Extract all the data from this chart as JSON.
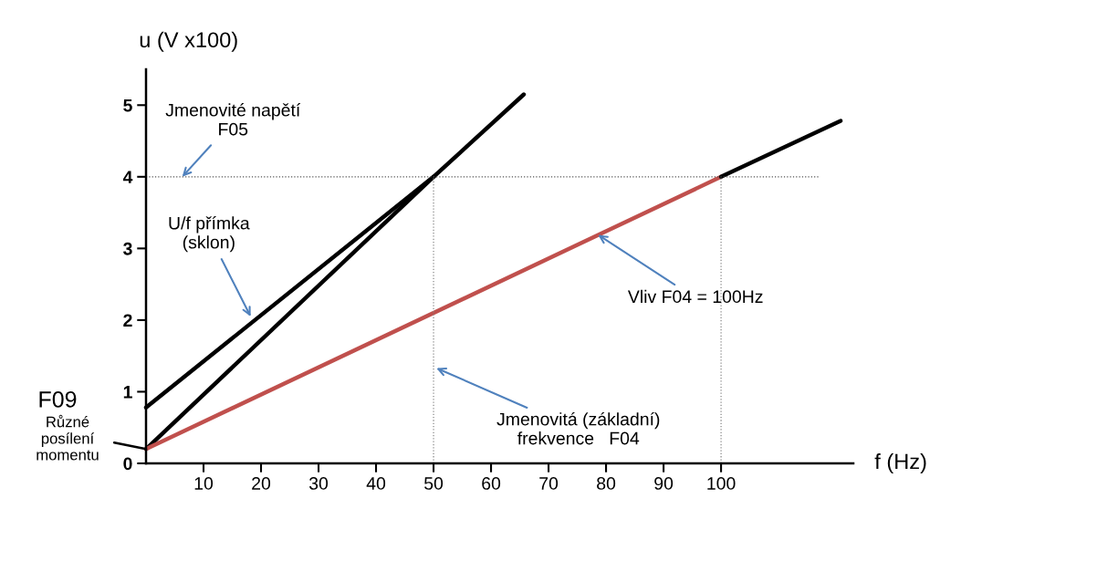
{
  "chart_data": {
    "type": "line",
    "xlabel": "f (Hz)",
    "ylabel": "u (V x100)",
    "xlim": [
      0,
      123
    ],
    "ylim": [
      0,
      5.5
    ],
    "xticks": [
      10,
      20,
      30,
      40,
      50,
      60,
      70,
      80,
      90,
      100
    ],
    "yticks": [
      0,
      1,
      2,
      3,
      4,
      5
    ],
    "grid": false,
    "series": [
      {
        "color": "#000000",
        "x": [
          0,
          50
        ],
        "values": [
          0.78,
          4.0
        ],
        "line_style": "solid"
      },
      {
        "color": "#000000",
        "x": [
          0,
          50,
          65.7
        ],
        "values": [
          0.2,
          4.0,
          5.15
        ],
        "line_style": "solid"
      },
      {
        "color": "#c0504d",
        "x": [
          0,
          100
        ],
        "values": [
          0.2,
          4.0
        ],
        "line_style": "solid"
      },
      {
        "color": "#000000",
        "x": [
          100,
          120.8
        ],
        "values": [
          4.0,
          4.78
        ],
        "line_style": "solid"
      },
      {
        "color": "#555555",
        "x": [
          0,
          117
        ],
        "values": [
          4.0,
          4.0
        ],
        "line_style": "dotted"
      },
      {
        "color": "#888888",
        "x": [
          50,
          50
        ],
        "values": [
          0,
          4.0
        ],
        "line_style": "dotted"
      },
      {
        "color": "#888888",
        "x": [
          100,
          100
        ],
        "values": [
          0,
          4.0
        ],
        "line_style": "dotted"
      }
    ],
    "annotations": [
      {
        "text": "Jmenovité napětí\nF05",
        "x": 6.3,
        "y": 4.0
      },
      {
        "text": "U/f přímka\n(sklon)",
        "x": 18.2,
        "y": 2.05
      },
      {
        "text": "Vliv F04 = 100Hz",
        "x": 78.6,
        "y": 3.19
      },
      {
        "text": "Jmenovitá (základní)\nfrekvence   F04",
        "x": 50.5,
        "y": 1.33
      },
      "F09",
      {
        "text": "Různé\nposílení\nmomentu",
        "x": 0,
        "y": 0.2
      }
    ]
  }
}
